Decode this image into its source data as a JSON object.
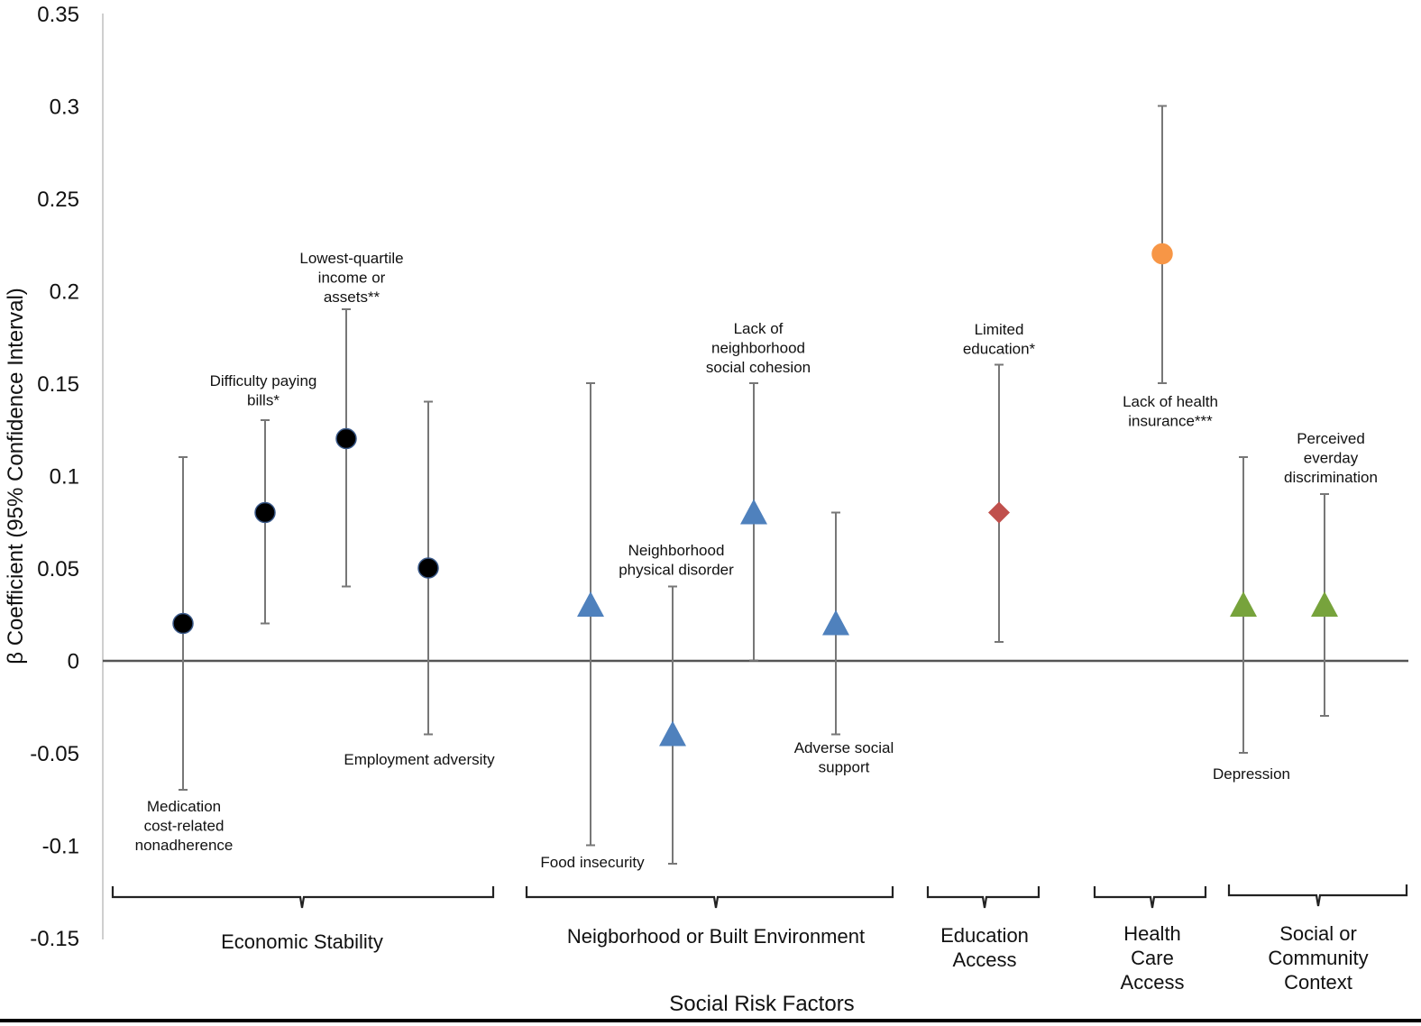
{
  "chart_data": {
    "type": "scatter",
    "subtype": "point-estimate-with-95-ci",
    "title": "",
    "xlabel": "Social Risk Factors",
    "ylabel": "β Coefficient (95% Confidence Interval)",
    "ylim": [
      -0.15,
      0.35
    ],
    "yticks": [
      "0.35",
      "0.3",
      "0.25",
      "0.2",
      "0.15",
      "0.1",
      "0.05",
      "0",
      "-0.05",
      "-0.1",
      "-0.15"
    ],
    "grid": false,
    "reference_line": 0,
    "groups": [
      {
        "name": "Economic Stability",
        "lines": [
          "Economic Stability"
        ]
      },
      {
        "name": "Neigborhood or Built Environment",
        "lines": [
          "Neigborhood or Built Environment"
        ]
      },
      {
        "name": "Education Access",
        "lines": [
          "Education",
          "Access"
        ]
      },
      {
        "name": "Health Care Access",
        "lines": [
          "Health",
          "Care",
          "Access"
        ]
      },
      {
        "name": "Social or Community Context",
        "lines": [
          "Social or",
          "Community",
          "Context"
        ]
      }
    ],
    "points": [
      {
        "label": [
          "Medication",
          "cost-related",
          "nonadherence"
        ],
        "group": 0,
        "estimate": 0.02,
        "ci": [
          -0.07,
          0.11
        ],
        "marker": "circle",
        "color": "#000000"
      },
      {
        "label": [
          "Difficulty paying",
          "bills*"
        ],
        "group": 0,
        "estimate": 0.08,
        "ci": [
          0.02,
          0.13
        ],
        "marker": "circle",
        "color": "#000000"
      },
      {
        "label": [
          "Lowest-quartile",
          "income or",
          "assets**"
        ],
        "group": 0,
        "estimate": 0.12,
        "ci": [
          0.04,
          0.19
        ],
        "marker": "circle",
        "color": "#000000"
      },
      {
        "label": [
          "Employment adversity"
        ],
        "group": 0,
        "estimate": 0.05,
        "ci": [
          -0.04,
          0.14
        ],
        "marker": "circle",
        "color": "#000000"
      },
      {
        "label": [
          "Food insecurity"
        ],
        "group": 1,
        "estimate": 0.03,
        "ci": [
          -0.1,
          0.15
        ],
        "marker": "triangle",
        "color": "#4f81bd"
      },
      {
        "label": [
          "Neighborhood",
          "physical disorder"
        ],
        "group": 1,
        "estimate": -0.04,
        "ci": [
          -0.11,
          0.04
        ],
        "marker": "triangle",
        "color": "#4f81bd"
      },
      {
        "label": [
          "Lack of",
          "neighborhood",
          "social cohesion"
        ],
        "group": 1,
        "estimate": 0.08,
        "ci": [
          0.0,
          0.15
        ],
        "marker": "triangle",
        "color": "#4f81bd"
      },
      {
        "label": [
          "Adverse social",
          "support"
        ],
        "group": 1,
        "estimate": 0.02,
        "ci": [
          -0.04,
          0.08
        ],
        "marker": "triangle",
        "color": "#4f81bd"
      },
      {
        "label": [
          "Limited",
          "education*"
        ],
        "group": 2,
        "estimate": 0.08,
        "ci": [
          0.01,
          0.16
        ],
        "marker": "diamond",
        "color": "#c0504d"
      },
      {
        "label": [
          "Lack of health",
          "insurance***"
        ],
        "group": 3,
        "estimate": 0.22,
        "ci": [
          0.15,
          0.3
        ],
        "marker": "circle",
        "color": "#f79646"
      },
      {
        "label": [
          "Depression"
        ],
        "group": 4,
        "estimate": 0.03,
        "ci": [
          -0.05,
          0.11
        ],
        "marker": "triangle",
        "color": "#77a33c"
      },
      {
        "label": [
          "Perceived",
          "everday",
          "discrimination"
        ],
        "group": 4,
        "estimate": 0.03,
        "ci": [
          -0.03,
          0.09
        ],
        "marker": "triangle",
        "color": "#77a33c"
      }
    ]
  }
}
